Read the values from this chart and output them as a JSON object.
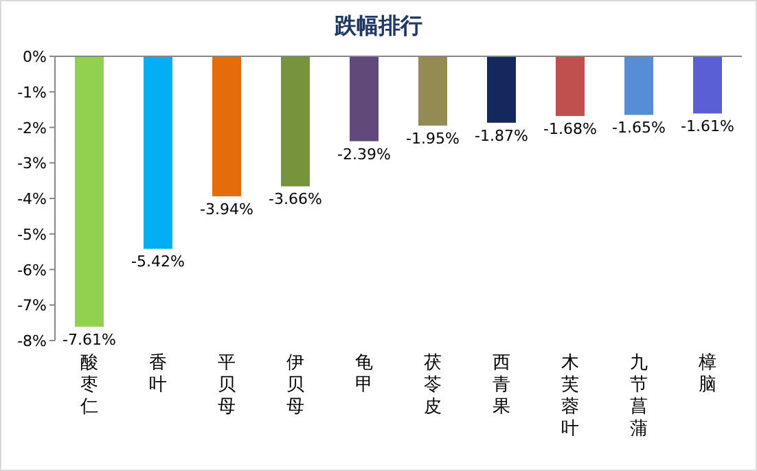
{
  "chart_data": {
    "type": "bar",
    "title": "跌幅排行",
    "categories": [
      "酸枣仁",
      "香叶",
      "平贝母",
      "伊贝母",
      "龟甲",
      "茯苓皮",
      "西青果",
      "木芙蓉叶",
      "九节菖蒲",
      "樟脑"
    ],
    "values": [
      -7.61,
      -5.42,
      -3.94,
      -3.66,
      -2.39,
      -1.95,
      -1.87,
      -1.68,
      -1.65,
      -1.61
    ],
    "value_labels": [
      "-7.61%",
      "-5.42%",
      "-3.94%",
      "-3.66%",
      "-2.39%",
      "-1.95%",
      "-1.87%",
      "-1.68%",
      "-1.65%",
      "-1.61%"
    ],
    "colors": [
      "#92d050",
      "#00b0f0",
      "#e46c0a",
      "#77933c",
      "#604a7b",
      "#948a54",
      "#14285e",
      "#c0504d",
      "#558ed5",
      "#5b5fd6"
    ],
    "ylim": [
      -8,
      0
    ],
    "yticks": [
      {
        "value": 0,
        "label": "0%"
      },
      {
        "value": -1,
        "label": "-1%"
      },
      {
        "value": -2,
        "label": "-2%"
      },
      {
        "value": -3,
        "label": "-3%"
      },
      {
        "value": -4,
        "label": "-4%"
      },
      {
        "value": -5,
        "label": "-5%"
      },
      {
        "value": -6,
        "label": "-6%"
      },
      {
        "value": -7,
        "label": "-7%"
      },
      {
        "value": -8,
        "label": "-8%"
      }
    ],
    "grid": false
  }
}
